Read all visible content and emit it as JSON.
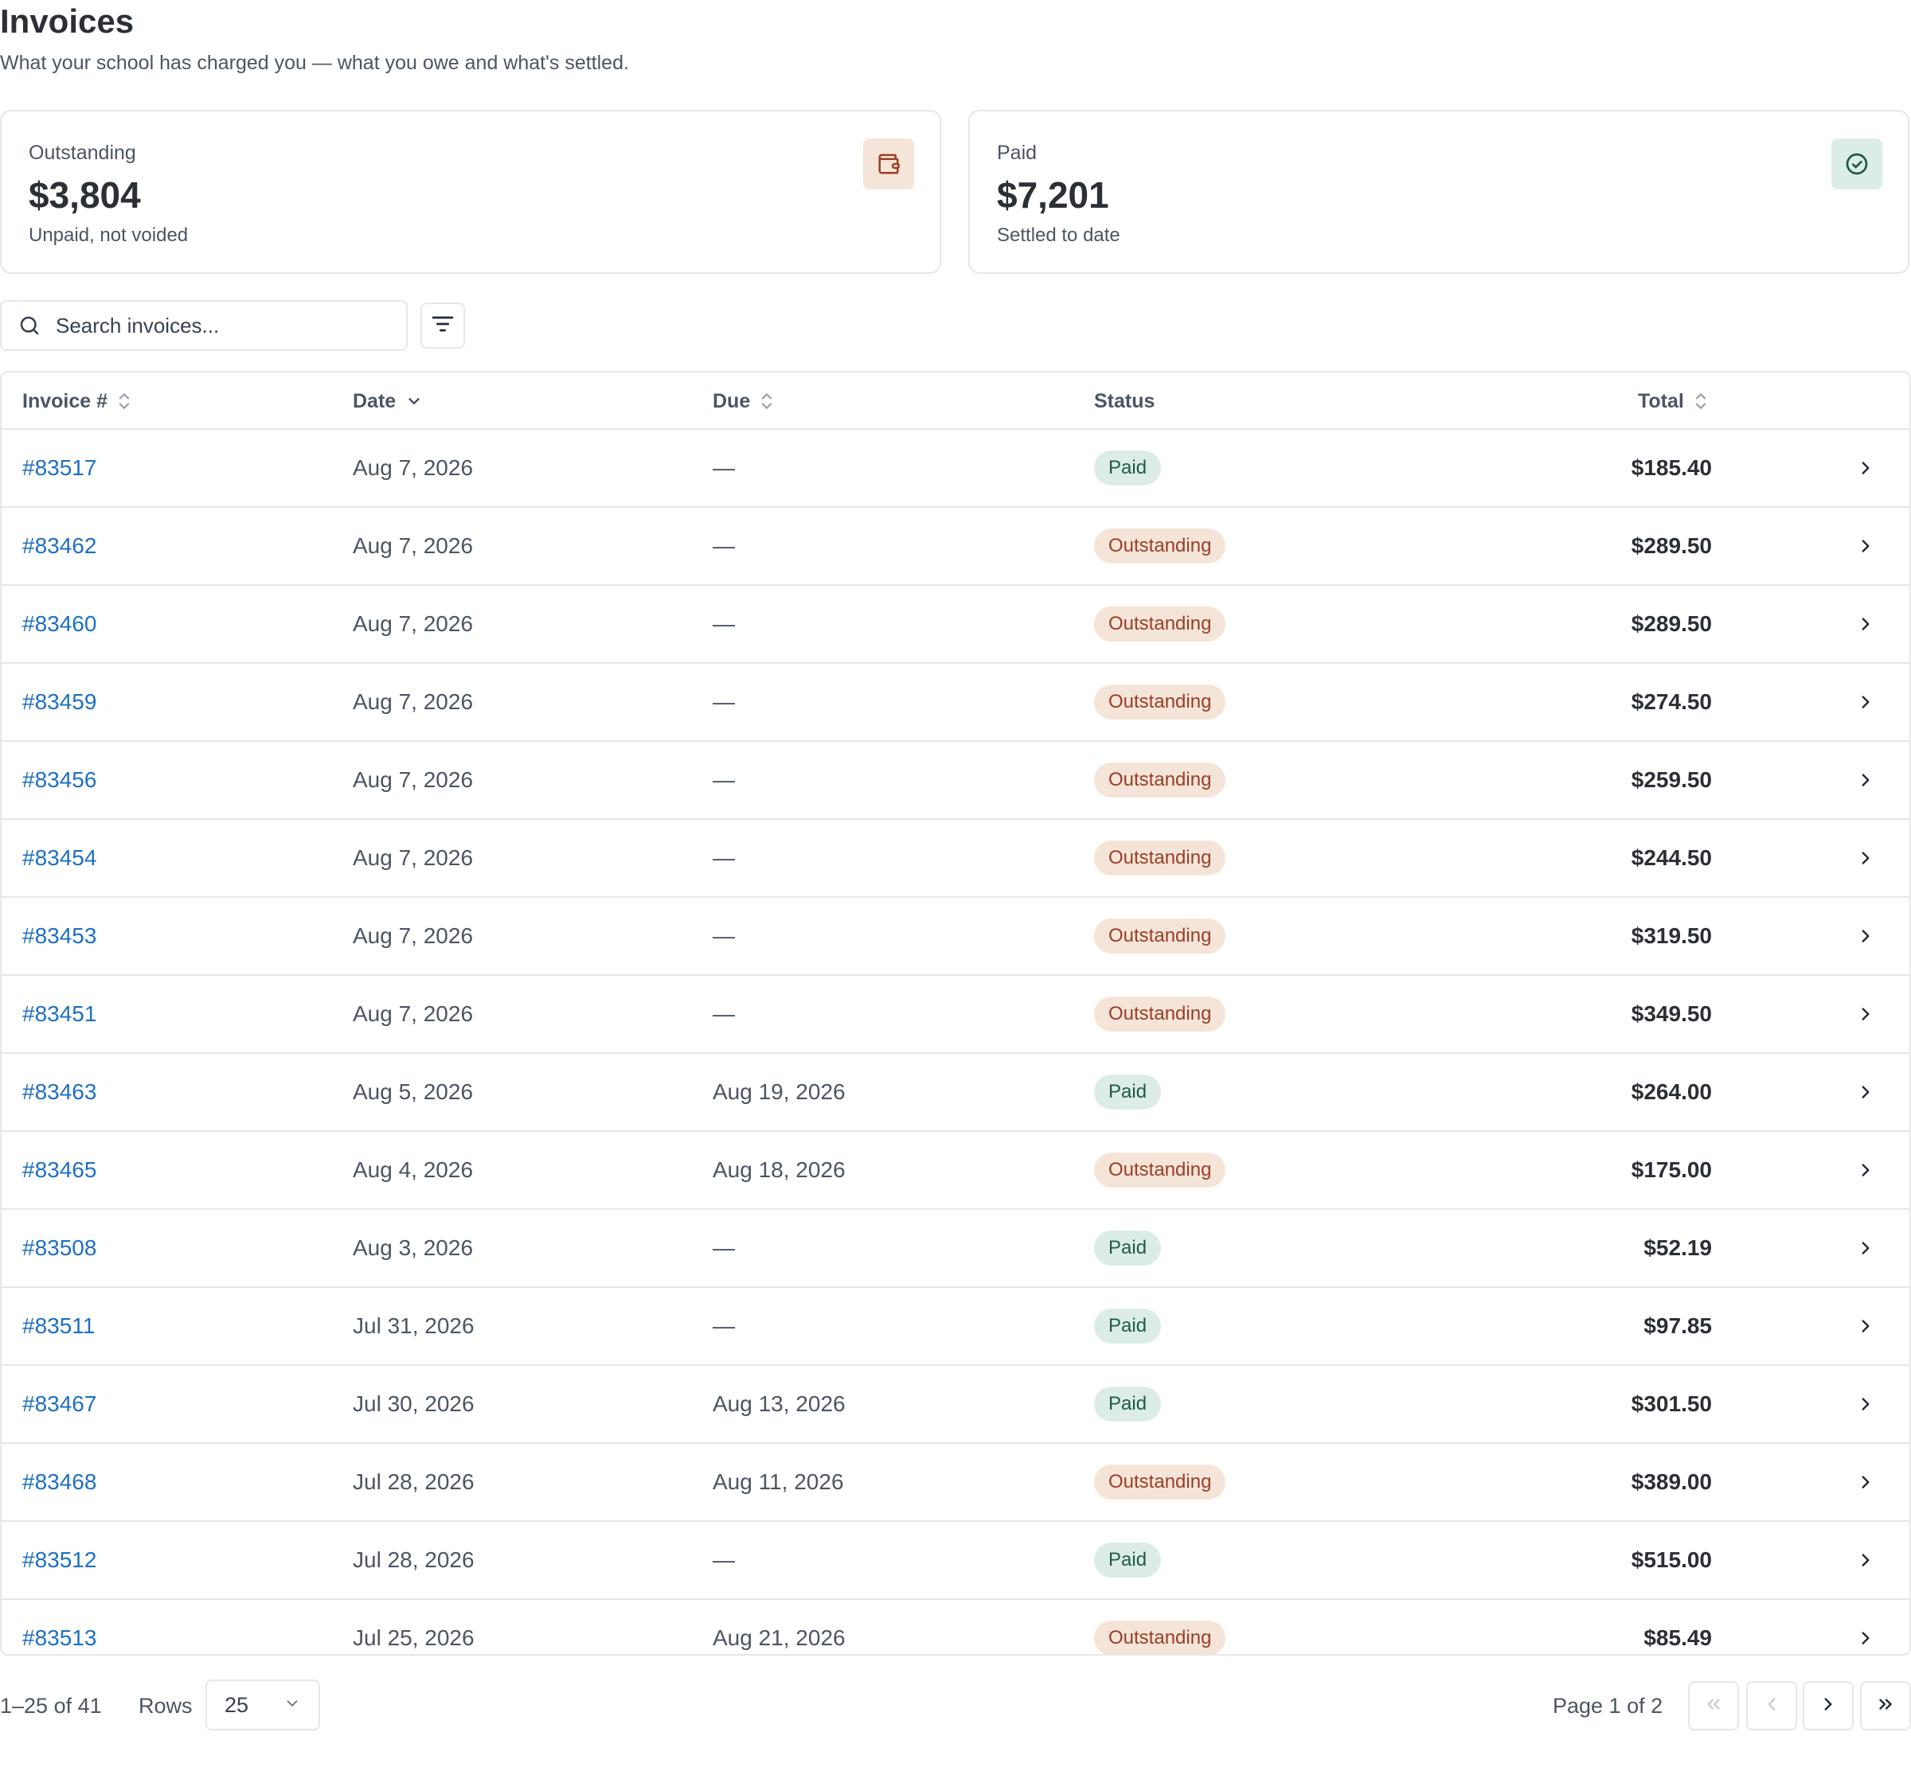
{
  "header": {
    "title": "Invoices",
    "subtitle": "What your school has charged you — what you owe and what's settled."
  },
  "summary": {
    "outstanding": {
      "label": "Outstanding",
      "value": "$3,804",
      "note": "Unpaid, not voided",
      "icon": "wallet-icon",
      "accent": "#9a3f27"
    },
    "paid": {
      "label": "Paid",
      "value": "$7,201",
      "note": "Settled to date",
      "icon": "check-circle-icon",
      "accent": "#1e5c42"
    }
  },
  "toolbar": {
    "search_placeholder": "Search invoices...",
    "filter_icon": "filter-icon"
  },
  "table": {
    "columns": {
      "invoice": "Invoice #",
      "date": "Date",
      "due": "Due",
      "status": "Status",
      "total": "Total"
    },
    "rows": [
      {
        "invoice": "#83517",
        "date": "Aug 7, 2026",
        "due": "—",
        "status": "Paid",
        "total": "$185.40"
      },
      {
        "invoice": "#83462",
        "date": "Aug 7, 2026",
        "due": "—",
        "status": "Outstanding",
        "total": "$289.50"
      },
      {
        "invoice": "#83460",
        "date": "Aug 7, 2026",
        "due": "—",
        "status": "Outstanding",
        "total": "$289.50"
      },
      {
        "invoice": "#83459",
        "date": "Aug 7, 2026",
        "due": "—",
        "status": "Outstanding",
        "total": "$274.50"
      },
      {
        "invoice": "#83456",
        "date": "Aug 7, 2026",
        "due": "—",
        "status": "Outstanding",
        "total": "$259.50"
      },
      {
        "invoice": "#83454",
        "date": "Aug 7, 2026",
        "due": "—",
        "status": "Outstanding",
        "total": "$244.50"
      },
      {
        "invoice": "#83453",
        "date": "Aug 7, 2026",
        "due": "—",
        "status": "Outstanding",
        "total": "$319.50"
      },
      {
        "invoice": "#83451",
        "date": "Aug 7, 2026",
        "due": "—",
        "status": "Outstanding",
        "total": "$349.50"
      },
      {
        "invoice": "#83463",
        "date": "Aug 5, 2026",
        "due": "Aug 19, 2026",
        "status": "Paid",
        "total": "$264.00"
      },
      {
        "invoice": "#83465",
        "date": "Aug 4, 2026",
        "due": "Aug 18, 2026",
        "status": "Outstanding",
        "total": "$175.00"
      },
      {
        "invoice": "#83508",
        "date": "Aug 3, 2026",
        "due": "—",
        "status": "Paid",
        "total": "$52.19"
      },
      {
        "invoice": "#83511",
        "date": "Jul 31, 2026",
        "due": "—",
        "status": "Paid",
        "total": "$97.85"
      },
      {
        "invoice": "#83467",
        "date": "Jul 30, 2026",
        "due": "Aug 13, 2026",
        "status": "Paid",
        "total": "$301.50"
      },
      {
        "invoice": "#83468",
        "date": "Jul 28, 2026",
        "due": "Aug 11, 2026",
        "status": "Outstanding",
        "total": "$389.00"
      },
      {
        "invoice": "#83512",
        "date": "Jul 28, 2026",
        "due": "—",
        "status": "Paid",
        "total": "$515.00"
      },
      {
        "invoice": "#83513",
        "date": "Jul 25, 2026",
        "due": "Aug 21, 2026",
        "status": "Outstanding",
        "total": "$85.49"
      }
    ]
  },
  "pagination": {
    "range_text": "1–25 of 41",
    "rows_label": "Rows",
    "rows_value": "25",
    "page_text": "Page 1 of 2"
  },
  "colors": {
    "link": "#1d6fc4",
    "paid_bg": "#dcede5",
    "paid_text": "#1e5c42",
    "outstanding_bg": "#f5e4d8",
    "outstanding_text": "#9a3f27"
  }
}
